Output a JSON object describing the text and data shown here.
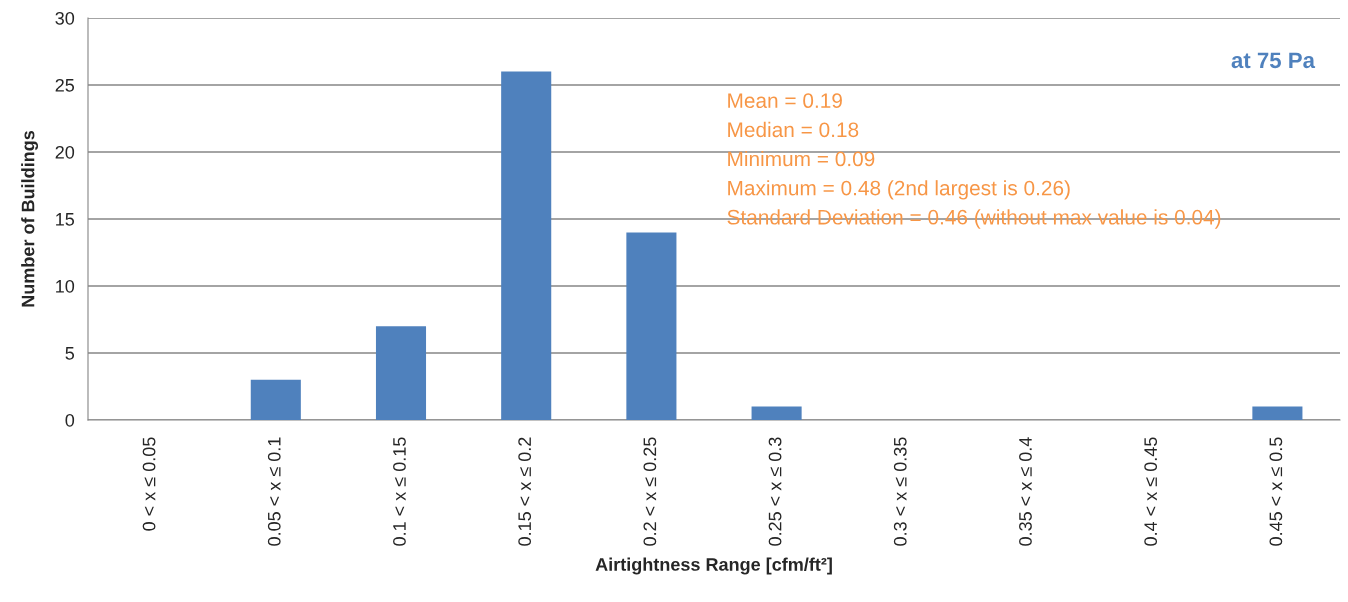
{
  "chart_data": {
    "type": "bar",
    "categories": [
      "0 < x ≤ 0.05",
      "0.05 < x ≤ 0.1",
      "0.1 < x ≤ 0.15",
      "0.15 < x ≤ 0.2",
      "0.2 < x ≤ 0.25",
      "0.25 < x ≤ 0.3",
      "0.3 < x ≤ 0.35",
      "0.35 < x ≤ 0.4",
      "0.4 < x ≤ 0.45",
      "0.45 < x ≤ 0.5"
    ],
    "values": [
      0,
      3,
      7,
      26,
      14,
      1,
      0,
      0,
      0,
      1
    ],
    "color": "#4f81bd",
    "xlabel": "Airtightness Range [cfm/ft²]",
    "ylabel": "Number of Buildings",
    "ylim": [
      0,
      30
    ],
    "yticks": [
      0,
      5,
      10,
      15,
      20,
      25,
      30
    ],
    "grid": "y",
    "annotations": [
      "at 75 Pa",
      "Mean = 0.19",
      "Median = 0.18",
      "Minimum = 0.09",
      "Maximum = 0.48 (2nd largest is 0.26)",
      "Standard Deviation = 0.46 (without max value is 0.04)"
    ]
  }
}
